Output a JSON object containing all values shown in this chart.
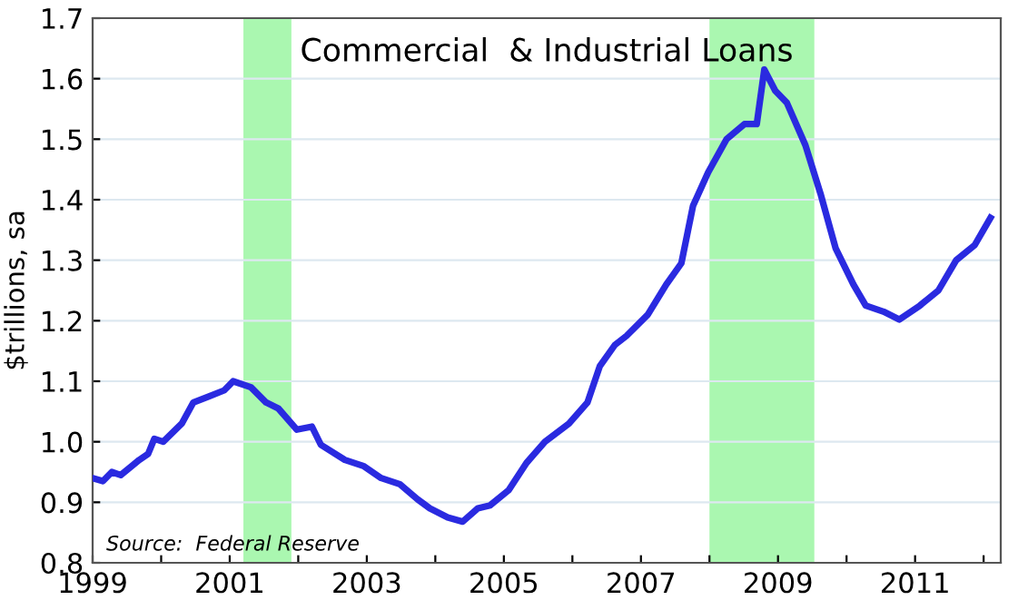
{
  "chart_data": {
    "type": "line",
    "title": "Commercial  & Industrial Loans",
    "ylabel": "$trillions, sa",
    "annotations": [
      "Source:  Federal Reserve"
    ],
    "series": [
      {
        "color": "#2a2ae0",
        "x": [
          1999.0,
          1999.15,
          1999.28,
          1999.41,
          1999.68,
          1999.81,
          1999.9,
          2000.03,
          2000.3,
          2000.47,
          2000.7,
          2000.92,
          2001.05,
          2001.31,
          2001.53,
          2001.71,
          2001.98,
          2002.2,
          2002.33,
          2002.68,
          2002.95,
          2003.21,
          2003.48,
          2003.74,
          2003.92,
          2004.18,
          2004.4,
          2004.62,
          2004.8,
          2005.07,
          2005.33,
          2005.6,
          2005.95,
          2006.22,
          2006.4,
          2006.62,
          2006.79,
          2007.1,
          2007.37,
          2007.59,
          2007.76,
          2007.98,
          2008.25,
          2008.51,
          2008.69,
          2008.8,
          2008.96,
          2009.13,
          2009.4,
          2009.62,
          2009.84,
          2010.1,
          2010.28,
          2010.54,
          2010.77,
          2011.07,
          2011.34,
          2011.6,
          2011.87,
          2012.1
        ],
        "values": [
          0.94,
          0.935,
          0.95,
          0.945,
          0.97,
          0.98,
          1.005,
          1.0,
          1.03,
          1.065,
          1.075,
          1.085,
          1.1,
          1.09,
          1.065,
          1.055,
          1.02,
          1.025,
          0.995,
          0.97,
          0.96,
          0.94,
          0.93,
          0.905,
          0.89,
          0.875,
          0.868,
          0.89,
          0.895,
          0.92,
          0.965,
          1.0,
          1.03,
          1.065,
          1.125,
          1.16,
          1.175,
          1.21,
          1.26,
          1.295,
          1.39,
          1.445,
          1.5,
          1.525,
          1.525,
          1.615,
          1.58,
          1.56,
          1.49,
          1.41,
          1.32,
          1.26,
          1.225,
          1.215,
          1.202,
          1.225,
          1.25,
          1.3,
          1.325,
          1.37
        ]
      }
    ],
    "bands": [
      {
        "axis": "x",
        "from": 2001.2,
        "to": 2001.9,
        "color": "#aaf7b0"
      },
      {
        "axis": "x",
        "from": 2008.0,
        "to": 2009.53,
        "color": "#aaf7b0"
      }
    ],
    "xlim": [
      1999,
      2012.25
    ],
    "xticks": [
      1999,
      {
        "value": 2000,
        "label": null
      },
      2001,
      {
        "value": 2002,
        "label": null
      },
      2003,
      {
        "value": 2004,
        "label": null
      },
      2005,
      {
        "value": 2006,
        "label": null
      },
      2007,
      {
        "value": 2008,
        "label": null
      },
      2009,
      {
        "value": 2010,
        "label": null
      },
      2011,
      {
        "value": 2012,
        "label": null
      }
    ],
    "ylim": [
      0.8,
      1.7
    ],
    "yticks": [
      {
        "value": 0.8,
        "label": "0.8"
      },
      {
        "value": 0.9,
        "label": "0.9"
      },
      {
        "value": 1.0,
        "label": "1.0"
      },
      {
        "value": 1.1,
        "label": "1.1"
      },
      {
        "value": 1.2,
        "label": "1.2"
      },
      {
        "value": 1.3,
        "label": "1.3"
      },
      {
        "value": 1.4,
        "label": "1.4"
      },
      {
        "value": 1.5,
        "label": "1.5"
      },
      {
        "value": 1.6,
        "label": "1.6"
      },
      {
        "value": 1.7,
        "label": "1.7"
      }
    ],
    "grid": "y",
    "legend": false,
    "marker": "none",
    "line_style": "solid"
  }
}
